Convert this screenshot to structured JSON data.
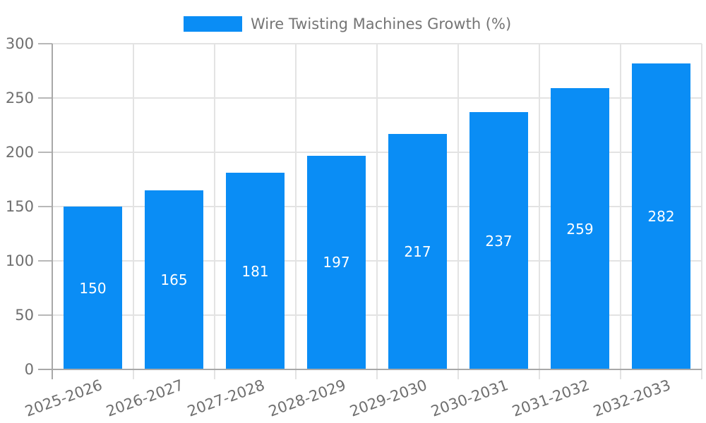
{
  "chart_data": {
    "type": "bar",
    "title": "Wire Twisting Machines Growth (%)",
    "categories": [
      "2025-2026",
      "2026-2027",
      "2027-2028",
      "2028-2029",
      "2029-2030",
      "2030-2031",
      "2031-2032",
      "2032-2033"
    ],
    "values": [
      150,
      165,
      181,
      197,
      217,
      237,
      259,
      282
    ],
    "xlabel": "",
    "ylabel": "",
    "ylim": [
      0,
      300
    ],
    "yticks": [
      0,
      50,
      100,
      150,
      200,
      250,
      300
    ],
    "grid": true,
    "legend_position": "top-center",
    "x_tick_rotation_deg": 20,
    "value_labels": "inside-center",
    "colors": {
      "bar": "#0a8df5",
      "bar_value_text": "#ffffff",
      "axis_line": "#a8a8a8",
      "tick_mark": "#b8b8b8",
      "grid_line": "#e3e3e3",
      "axis_text": "#6f6f6f",
      "legend_text": "#757575",
      "background": "#ffffff"
    }
  }
}
